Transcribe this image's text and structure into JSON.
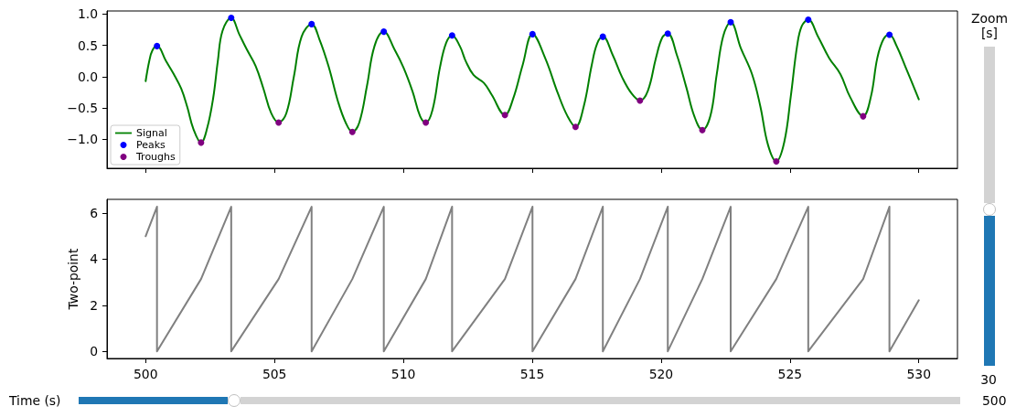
{
  "chart_data": [
    {
      "type": "line",
      "x": [
        500.0,
        500.14,
        500.26,
        500.44,
        500.79,
        501.08,
        501.38,
        501.62,
        501.85,
        502.15,
        502.38,
        502.62,
        502.8,
        502.98,
        503.32,
        503.63,
        503.92,
        504.27,
        504.57,
        504.87,
        505.16,
        505.46,
        505.75,
        506.05,
        506.44,
        506.75,
        507.11,
        507.46,
        507.76,
        508.02,
        508.29,
        508.59,
        508.88,
        509.24,
        509.65,
        510.0,
        510.36,
        510.65,
        510.87,
        511.13,
        511.42,
        511.66,
        511.89,
        512.19,
        512.42,
        512.72,
        513.13,
        513.43,
        513.94,
        514.26,
        514.63,
        515.01,
        515.5,
        516.0,
        516.37,
        516.68,
        517.0,
        517.31,
        517.52,
        517.74,
        518.12,
        518.49,
        518.86,
        519.18,
        519.49,
        519.8,
        520.05,
        520.26,
        520.61,
        520.98,
        521.29,
        521.6,
        521.91,
        522.16,
        522.41,
        522.7,
        523.1,
        523.53,
        523.85,
        524.15,
        524.47,
        524.78,
        525.03,
        525.28,
        525.46,
        525.71,
        526.08,
        526.52,
        526.96,
        527.33,
        527.84,
        528.14,
        528.39,
        528.63,
        528.86,
        529.13,
        529.5,
        530.0
      ],
      "series": [
        {
          "name": "Signal",
          "color": "#008000",
          "values": [
            -0.07,
            0.25,
            0.42,
            0.49,
            0.25,
            0.05,
            -0.19,
            -0.49,
            -0.83,
            -1.05,
            -0.83,
            -0.34,
            0.25,
            0.73,
            0.94,
            0.68,
            0.44,
            0.17,
            -0.19,
            -0.58,
            -0.73,
            -0.58,
            0.0,
            0.64,
            0.84,
            0.59,
            0.15,
            -0.39,
            -0.73,
            -0.88,
            -0.73,
            -0.14,
            0.49,
            0.72,
            0.44,
            0.15,
            -0.24,
            -0.63,
            -0.73,
            -0.53,
            0.15,
            0.54,
            0.66,
            0.49,
            0.25,
            0.03,
            -0.1,
            -0.29,
            -0.61,
            -0.35,
            0.19,
            0.68,
            0.3,
            -0.27,
            -0.63,
            -0.8,
            -0.47,
            0.19,
            0.53,
            0.64,
            0.35,
            -0.01,
            -0.27,
            -0.38,
            -0.22,
            0.3,
            0.63,
            0.69,
            0.35,
            -0.17,
            -0.63,
            -0.85,
            -0.63,
            0.04,
            0.65,
            0.87,
            0.45,
            0.04,
            -0.47,
            -1.09,
            -1.35,
            -1.04,
            -0.32,
            0.5,
            0.81,
            0.91,
            0.65,
            0.3,
            0.04,
            -0.32,
            -0.63,
            -0.32,
            0.3,
            0.6,
            0.67,
            0.5,
            0.14,
            -0.36
          ]
        },
        {
          "name": "Peaks",
          "type": "scatter",
          "marker": "circle",
          "color": "#0000ff",
          "x": [
            500.44,
            503.32,
            506.44,
            509.24,
            511.89,
            515.01,
            517.74,
            520.26,
            522.7,
            525.71,
            528.86
          ],
          "values": [
            0.49,
            0.94,
            0.84,
            0.72,
            0.66,
            0.68,
            0.64,
            0.69,
            0.87,
            0.91,
            0.67
          ]
        },
        {
          "name": "Troughs",
          "type": "scatter",
          "marker": "circle",
          "color": "#800080",
          "x": [
            502.15,
            505.16,
            508.02,
            510.87,
            513.94,
            516.68,
            519.18,
            521.6,
            524.47,
            527.84
          ],
          "values": [
            -1.05,
            -0.73,
            -0.88,
            -0.73,
            -0.61,
            -0.8,
            -0.38,
            -0.85,
            -1.35,
            -0.63
          ]
        }
      ],
      "xlim": [
        498.5,
        531.5
      ],
      "xticks": [
        500,
        505,
        510,
        515,
        520,
        525,
        530
      ],
      "ylim": [
        -1.46,
        1.05
      ],
      "yticks": [
        {
          "value": -1,
          "label": "−1.0"
        },
        {
          "value": -0.5,
          "label": "−0.5"
        },
        {
          "value": 0,
          "label": "0.0"
        },
        {
          "value": 0.5,
          "label": "0.5"
        },
        {
          "value": 1,
          "label": "1.0"
        }
      ],
      "tick_labels": "y",
      "legend": "bottom left"
    },
    {
      "type": "line",
      "x": [
        500,
        500.44,
        500.44,
        502.15,
        503.32,
        503.32,
        505.16,
        506.44,
        506.44,
        508.02,
        509.24,
        509.24,
        510.87,
        511.89,
        511.89,
        513.94,
        515.01,
        515.01,
        516.68,
        517.74,
        517.74,
        519.18,
        520.26,
        520.26,
        521.6,
        522.7,
        522.7,
        524.47,
        525.71,
        525.71,
        527.84,
        528.86,
        528.86,
        530
      ],
      "values": [
        5.0,
        6.28,
        0,
        3.14,
        6.28,
        0,
        3.14,
        6.28,
        0,
        3.14,
        6.28,
        0,
        3.14,
        6.28,
        0,
        3.14,
        6.28,
        0,
        3.14,
        6.28,
        0,
        3.14,
        6.28,
        0,
        3.14,
        6.28,
        0,
        3.14,
        6.28,
        0,
        3.14,
        6.28,
        0,
        2.22
      ],
      "color": "#808080",
      "ylabel": "Two-point",
      "xlim": [
        498.5,
        531.5
      ],
      "xticks": [
        500,
        505,
        510,
        515,
        520,
        525,
        530
      ],
      "ylim": [
        -0.31,
        6.6
      ],
      "yticks": [
        0,
        2,
        4,
        6
      ]
    },
    {
      "type": "other",
      "annotations": [
        "Time (s)",
        "500",
        "Zoom [s]",
        "30"
      ]
    }
  ]
}
